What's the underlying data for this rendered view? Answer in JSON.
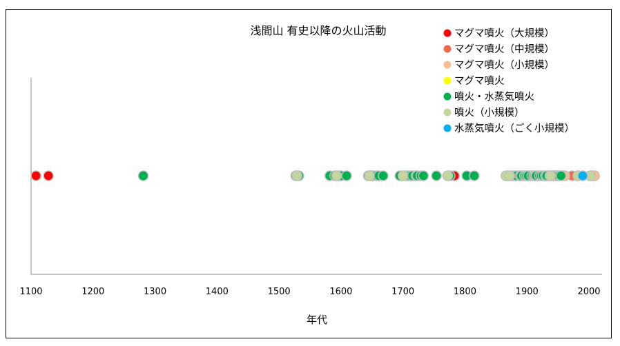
{
  "chart_data": {
    "type": "scatter",
    "title": "浅間山 有史以降の火山活動",
    "xlabel": "年代",
    "ylabel": "",
    "xlim": [
      1100,
      2000
    ],
    "x_ticks": [
      "1100",
      "1200",
      "1300",
      "1400",
      "1500",
      "1600",
      "1700",
      "1800",
      "1900",
      "2000"
    ],
    "grid": false,
    "legend_position": "top-right",
    "series": [
      {
        "name": "マグマ噴火（大規模）",
        "color": "#ff0000",
        "x": [
          1108,
          1128,
          1783
        ]
      },
      {
        "name": "マグマ噴火（中規模）",
        "color": "#f06a4a",
        "x": [
          1596,
          1973
        ]
      },
      {
        "name": "マグマ噴火（小規模）",
        "color": "#f7be8f",
        "x": [
          1905,
          1918,
          1928,
          1935,
          1940,
          1944,
          1947,
          1950,
          1954,
          1958,
          1961,
          1983,
          2004,
          2008,
          2009
        ]
      },
      {
        "name": "マグマ噴火",
        "color": "#ffff00",
        "x": [
          1650,
          1720,
          1888,
          1894,
          1900
        ]
      },
      {
        "name": "噴火・水蒸気噴火",
        "color": "#00b050",
        "x": [
          1281,
          1527,
          1532,
          1582,
          1590,
          1600,
          1609,
          1644,
          1648,
          1652,
          1657,
          1661,
          1668,
          1695,
          1704,
          1708,
          1711,
          1715,
          1721,
          1723,
          1729,
          1733,
          1754,
          1776,
          1803,
          1815,
          1869,
          1875,
          1879,
          1883,
          1889,
          1891,
          1896,
          1899,
          1902,
          1908,
          1911,
          1913,
          1915,
          1920,
          1923,
          1926,
          1930,
          1932,
          1937,
          1942,
          1946,
          1949,
          1952,
          1955
        ]
      },
      {
        "name": "噴火（小規模）",
        "color": "#c3d69b",
        "x": [
          1529,
          1593,
          1646,
          1700,
          1772,
          1866,
          1872,
          1938,
          1982,
          2002
        ]
      },
      {
        "name": "水蒸気噴火（ごく小規模）",
        "color": "#00b0f0",
        "x": [
          1990
        ]
      }
    ]
  }
}
